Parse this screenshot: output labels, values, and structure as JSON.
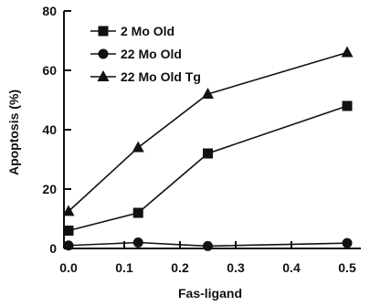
{
  "chart_data": {
    "type": "line",
    "title": "",
    "xlabel": "Fas-ligand",
    "ylabel": "Apoptosis (%)",
    "xlim": [
      0,
      0.5
    ],
    "ylim": [
      0,
      80
    ],
    "x_ticks": [
      "0.0",
      "0.1",
      "0.2",
      "0.3",
      "0.4",
      "0.5"
    ],
    "y_ticks": [
      "0",
      "20",
      "40",
      "60",
      "80"
    ],
    "grid": false,
    "legend_position": "top-left",
    "series": [
      {
        "name": "2 Mo Old",
        "marker": "square",
        "color": "#111111",
        "x": [
          0,
          0.125,
          0.25,
          0.5
        ],
        "y": [
          6,
          12,
          32,
          48
        ]
      },
      {
        "name": "22 Mo Old",
        "marker": "circle",
        "color": "#111111",
        "x": [
          0,
          0.125,
          0.25,
          0.5
        ],
        "y": [
          1,
          2,
          0.8,
          1.8
        ]
      },
      {
        "name": "22 Mo Old Tg",
        "marker": "triangle",
        "color": "#111111",
        "x": [
          0,
          0.125,
          0.25,
          0.5
        ],
        "y": [
          12.5,
          34,
          52,
          66
        ]
      }
    ]
  }
}
